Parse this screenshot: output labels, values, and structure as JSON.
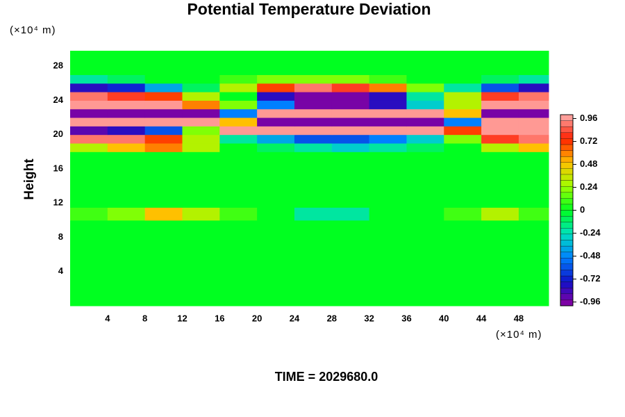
{
  "chart_data": {
    "type": "heatmap",
    "title": "Potential Temperature Deviation",
    "y_label": "Height",
    "y_unit": "(×10⁴ m)",
    "x_unit": "(×10⁴ m)",
    "footer": "TIME = 2029680.0",
    "xlim": [
      0,
      51.2
    ],
    "ylim": [
      0,
      29.8
    ],
    "xticks": [
      4,
      8,
      12,
      16,
      20,
      24,
      28,
      32,
      36,
      40,
      44,
      48
    ],
    "yticks": [
      4,
      8,
      12,
      16,
      20,
      24,
      28
    ],
    "x_edges": [
      0,
      4,
      8,
      12,
      16,
      20,
      24,
      28,
      32,
      36,
      40,
      44,
      48,
      51.2
    ],
    "y_edges": [
      0,
      10,
      11.5,
      18,
      19,
      20,
      21,
      22,
      23,
      24,
      25,
      26,
      27,
      29.8
    ],
    "values": [
      [
        0,
        0,
        0,
        0,
        0,
        0,
        0,
        0,
        0,
        0,
        0,
        0,
        0
      ],
      [
        0.1,
        0.2,
        0.5,
        0.3,
        0.1,
        0,
        -0.2,
        -0.2,
        0,
        0,
        0.1,
        0.3,
        0.1
      ],
      [
        0,
        0,
        0,
        0,
        0,
        0,
        0,
        0,
        0,
        0,
        0,
        0,
        0
      ],
      [
        0.3,
        0.5,
        0.6,
        0.3,
        0,
        -0.1,
        -0.2,
        -0.3,
        -0.2,
        -0.1,
        0,
        0.3,
        0.5
      ],
      [
        0.9,
        0.9,
        0.7,
        0.3,
        -0.2,
        -0.4,
        -0.6,
        -0.6,
        -0.5,
        -0.3,
        0.2,
        0.8,
        0.9
      ],
      [
        -0.9,
        -0.8,
        -0.6,
        0.2,
        0.96,
        0.96,
        0.96,
        0.96,
        0.96,
        0.96,
        0.7,
        0.96,
        0.96
      ],
      [
        0.96,
        0.96,
        0.96,
        0.96,
        0.5,
        -0.96,
        -0.96,
        -0.96,
        -0.96,
        -0.96,
        -0.5,
        0.96,
        0.96
      ],
      [
        -0.96,
        -0.96,
        -0.96,
        -0.96,
        -0.5,
        0.96,
        0.96,
        0.96,
        0.96,
        0.96,
        0.5,
        -0.96,
        -0.96
      ],
      [
        0.96,
        0.96,
        0.96,
        0.6,
        0.2,
        -0.5,
        -0.96,
        -0.96,
        -0.8,
        -0.3,
        0.3,
        0.96,
        0.96
      ],
      [
        0.9,
        0.8,
        0.7,
        0.3,
        0,
        -0.8,
        -0.96,
        -0.96,
        -0.8,
        -0.2,
        0.3,
        0.8,
        0.9
      ],
      [
        -0.8,
        -0.7,
        -0.4,
        -0.1,
        0.3,
        0.7,
        0.9,
        0.8,
        0.6,
        0.2,
        -0.2,
        -0.6,
        -0.8
      ],
      [
        -0.2,
        -0.1,
        0,
        0,
        0.1,
        0.2,
        0.2,
        0.2,
        0.1,
        0,
        0,
        -0.1,
        -0.2
      ],
      [
        0,
        0,
        0,
        0,
        0,
        0,
        0,
        0,
        0,
        0,
        0,
        0,
        0
      ]
    ],
    "clim": [
      -1.0,
      1.0
    ],
    "colorbar_ticks": [
      0.96,
      0.72,
      0.48,
      0.24,
      0,
      -0.24,
      -0.48,
      -0.72,
      -0.96
    ],
    "colormap": [
      "#8c00a0",
      "#1010c8",
      "#0080ff",
      "#00e0c0",
      "#00ff20",
      "#a0ff00",
      "#ffc000",
      "#ff2000",
      "#ffb0b0"
    ]
  }
}
